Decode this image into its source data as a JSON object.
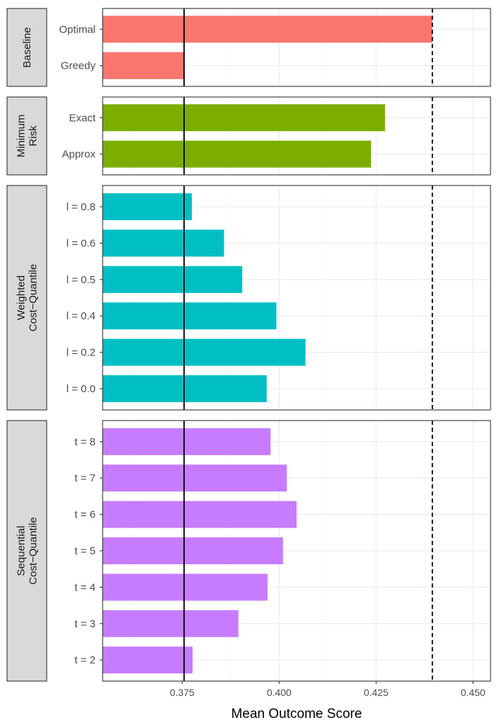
{
  "chart_data": {
    "type": "bar",
    "orientation": "horizontal",
    "xlabel": "Mean Outcome Score",
    "xlim": [
      0.3545,
      0.4545
    ],
    "x_ticks": [
      0.375,
      0.4,
      0.425,
      0.45
    ],
    "x_tick_labels": [
      "0.375",
      "0.400",
      "0.425",
      "0.450"
    ],
    "reference_lines": [
      {
        "value": 0.3755,
        "style": "solid"
      },
      {
        "value": 0.4395,
        "style": "dashed"
      }
    ],
    "grid": true,
    "panels": [
      {
        "strip_lines": [
          "Baseline"
        ],
        "color": "#F8766D",
        "categories": [
          "Optimal",
          "Greedy"
        ],
        "values": [
          0.4395,
          0.3755
        ]
      },
      {
        "strip_lines": [
          "Minimum",
          "Risk"
        ],
        "color": "#7CAE00",
        "categories": [
          "Exact",
          "Approx"
        ],
        "values": [
          0.4273,
          0.4237
        ]
      },
      {
        "strip_lines": [
          "Weighted",
          "Cost−Quantile"
        ],
        "color": "#00BFC4",
        "categories": [
          "l = 0.8",
          "l = 0.6",
          "l = 0.5",
          "l = 0.4",
          "l = 0.2",
          "l = 0.0"
        ],
        "values": [
          0.3775,
          0.3858,
          0.3905,
          0.3993,
          0.4068,
          0.3968
        ]
      },
      {
        "strip_lines": [
          "Sequential",
          "Cost−Quantile"
        ],
        "color": "#C77CFF",
        "categories": [
          "t = 8",
          "t = 7",
          "t = 6",
          "t = 5",
          "t = 4",
          "t = 3",
          "t = 2"
        ],
        "values": [
          0.3978,
          0.402,
          0.4045,
          0.401,
          0.397,
          0.3895,
          0.3777
        ]
      }
    ]
  }
}
